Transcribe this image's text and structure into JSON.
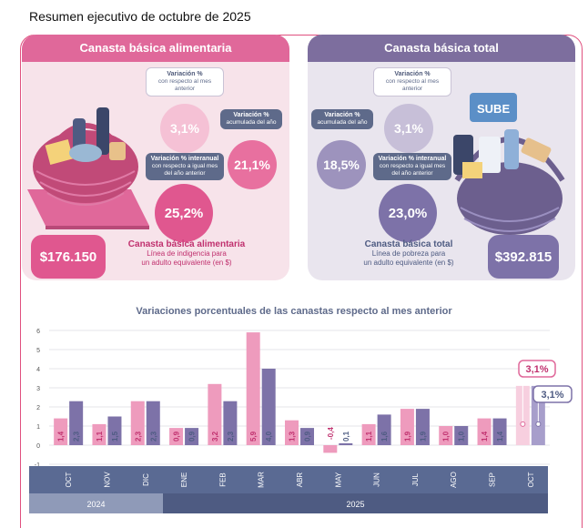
{
  "page": {
    "title": "Resumen ejecutivo de octubre de 2025"
  },
  "cba": {
    "header": "Canasta básica alimentaria",
    "monthly": {
      "title": "Variación %",
      "desc": "con respecto al mes anterior",
      "value": "3,1%"
    },
    "ytd": {
      "title": "Variación %",
      "desc": "acumulada del año",
      "value": "21,1%"
    },
    "yoy": {
      "title": "Variación % interanual",
      "desc": "con respecto a igual mes del año anterior",
      "value": "25,2%"
    },
    "price": "$176.150",
    "price_title": "Canasta básica alimentaria",
    "price_desc1": "Línea de indigencia para",
    "price_desc2": "un adulto equivalente (en $)"
  },
  "cbt": {
    "header": "Canasta básica total",
    "monthly": {
      "title": "Variación %",
      "desc": "con respecto al mes anterior",
      "value": "3,1%"
    },
    "ytd": {
      "title": "Variación %",
      "desc": "acumulada del año",
      "value": "18,5%"
    },
    "yoy": {
      "title": "Variación % interanual",
      "desc": "con respecto a igual mes del año anterior",
      "value": "23,0%"
    },
    "price": "$392.815",
    "price_title": "Canasta básica total",
    "price_desc1": "Línea de pobreza para",
    "price_desc2": "un adulto equivalente (en $)",
    "basket_sign": "SUBE"
  },
  "colors": {
    "pink": "#ee9bbd",
    "purple": "#7d72a8",
    "pink_dark": "#e0689a",
    "axis_bar": "#4e5b82"
  },
  "chart_data": {
    "type": "bar",
    "title": "Variaciones porcentuales de las canastas respecto al mes anterior",
    "categories": [
      "OCT",
      "NOV",
      "DIC",
      "ENE",
      "FEB",
      "MAR",
      "ABR",
      "MAY",
      "JUN",
      "JUL",
      "AGO",
      "SEP",
      "OCT"
    ],
    "years": [
      {
        "label": "2024",
        "from": 0,
        "to": 2
      },
      {
        "label": "2025",
        "from": 3,
        "to": 12
      }
    ],
    "series": [
      {
        "name": "Canasta básica alimentaria",
        "values": [
          1.4,
          1.1,
          2.3,
          0.9,
          3.2,
          5.9,
          1.3,
          -0.4,
          1.1,
          1.9,
          1.0,
          1.4,
          3.1
        ],
        "labels": [
          "1,4",
          "1,1",
          "2,3",
          "0,9",
          "3,2",
          "5,9",
          "1,3",
          "-0,4",
          "1,1",
          "1,9",
          "1,0",
          "1,4",
          "3,1%"
        ]
      },
      {
        "name": "Canasta básica total",
        "values": [
          2.3,
          1.5,
          2.3,
          0.9,
          2.3,
          4.0,
          0.9,
          0.1,
          1.6,
          1.9,
          1.0,
          1.4,
          3.1
        ],
        "labels": [
          "2,3",
          "1,5",
          "2,3",
          "0,9",
          "2,3",
          "4,0",
          "0,9",
          "0,1",
          "1,6",
          "1,9",
          "1,0",
          "1,4",
          "3,1%"
        ]
      }
    ],
    "yticks": [
      -1,
      0,
      1,
      2,
      3,
      4,
      5,
      6
    ],
    "ylim": [
      -1,
      6.3
    ]
  }
}
